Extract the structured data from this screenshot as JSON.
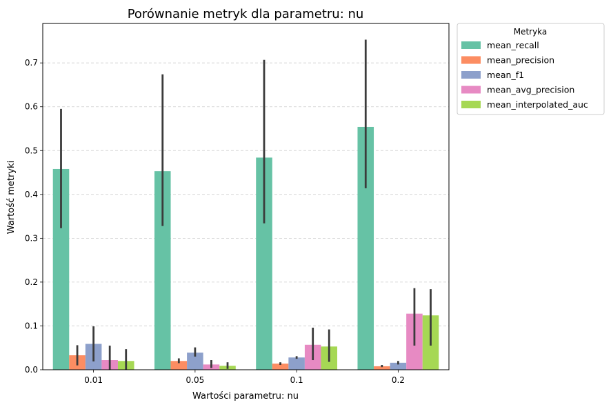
{
  "chart_data": {
    "type": "bar",
    "title": "Porównanie metryk dla parametru: nu",
    "xlabel": "Wartości parametru: nu",
    "ylabel": "Wartość metryki",
    "categories": [
      "0.01",
      "0.05",
      "0.1",
      "0.2"
    ],
    "ylim": [
      0,
      0.79
    ],
    "yticks": [
      "0.0",
      "0.1",
      "0.2",
      "0.3",
      "0.4",
      "0.5",
      "0.6",
      "0.7"
    ],
    "grid": "horizontal dashed",
    "legend": {
      "title": "Metryka",
      "placement": "outside-top-right"
    },
    "series": [
      {
        "name": "mean_recall",
        "color": "#66c2a5",
        "values": [
          0.458,
          0.453,
          0.484,
          0.554
        ],
        "err_low": [
          0.323,
          0.328,
          0.334,
          0.414
        ],
        "err_high": [
          0.595,
          0.674,
          0.707,
          0.753
        ]
      },
      {
        "name": "mean_precision",
        "color": "#fc8d62",
        "values": [
          0.033,
          0.02,
          0.014,
          0.008
        ],
        "err_low": [
          0.01,
          0.015,
          0.011,
          0.006
        ],
        "err_high": [
          0.056,
          0.026,
          0.017,
          0.011
        ]
      },
      {
        "name": "mean_f1",
        "color": "#8da0cb",
        "values": [
          0.059,
          0.039,
          0.028,
          0.016
        ],
        "err_low": [
          0.019,
          0.03,
          0.025,
          0.012
        ],
        "err_high": [
          0.099,
          0.051,
          0.031,
          0.02
        ]
      },
      {
        "name": "mean_avg_precision",
        "color": "#e78ac3",
        "values": [
          0.022,
          0.012,
          0.057,
          0.128
        ],
        "err_low": [
          0.0,
          0.004,
          0.022,
          0.055
        ],
        "err_high": [
          0.055,
          0.022,
          0.096,
          0.186
        ]
      },
      {
        "name": "mean_interpolated_auc",
        "color": "#a6d854",
        "values": [
          0.02,
          0.009,
          0.053,
          0.124
        ],
        "err_low": [
          0.0,
          0.002,
          0.018,
          0.055
        ],
        "err_high": [
          0.047,
          0.017,
          0.092,
          0.184
        ]
      }
    ]
  }
}
